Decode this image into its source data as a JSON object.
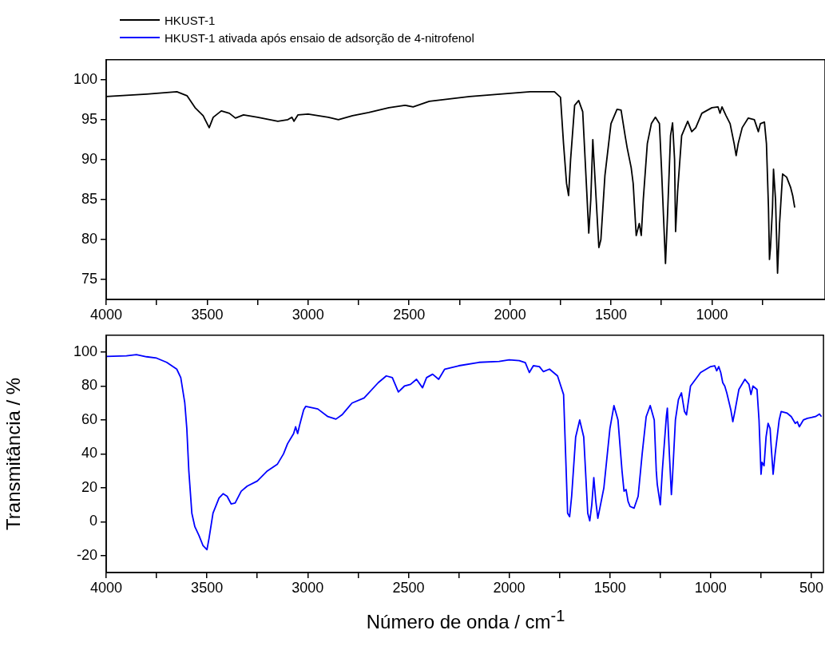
{
  "chart_data": [
    {
      "type": "line",
      "legend": "top",
      "xlim": [
        4000,
        440
      ],
      "ylim": [
        72.5,
        102.5
      ],
      "xticks": [
        4000,
        {
          "value": 3750,
          "label": null
        },
        3500,
        {
          "value": 3250,
          "label": null
        },
        3000,
        {
          "value": 2750,
          "label": null
        },
        2500,
        {
          "value": 2250,
          "label": null
        },
        2000,
        {
          "value": 1750,
          "label": null
        },
        1500,
        {
          "value": 1250,
          "label": null
        },
        1000,
        {
          "value": 750,
          "label": null
        }
      ],
      "yticks": [
        75,
        80,
        85,
        90,
        95,
        100
      ],
      "series": [
        {
          "name": "HKUST-1",
          "color": "#000000",
          "x": [
            4000,
            3800,
            3650,
            3600,
            3560,
            3520,
            3490,
            3470,
            3430,
            3390,
            3360,
            3320,
            3250,
            3150,
            3100,
            3080,
            3070,
            3050,
            3000,
            2900,
            2850,
            2780,
            2700,
            2600,
            2520,
            2480,
            2400,
            2300,
            2200,
            2100,
            2000,
            1900,
            1780,
            1750,
            1735,
            1720,
            1710,
            1700,
            1680,
            1660,
            1640,
            1620,
            1610,
            1600,
            1590,
            1580,
            1560,
            1550,
            1530,
            1500,
            1470,
            1450,
            1430,
            1420,
            1400,
            1390,
            1375,
            1360,
            1350,
            1340,
            1320,
            1300,
            1280,
            1260,
            1250,
            1240,
            1230,
            1220,
            1205,
            1195,
            1185,
            1180,
            1170,
            1150,
            1120,
            1100,
            1080,
            1050,
            1000,
            970,
            960,
            950,
            930,
            910,
            890,
            880,
            870,
            850,
            820,
            790,
            770,
            760,
            740,
            730,
            720,
            715,
            710,
            700,
            695,
            685,
            675,
            665,
            650,
            630,
            610,
            600,
            590
          ],
          "values": [
            97.9,
            98.2,
            98.5,
            98.0,
            96.5,
            95.5,
            94.0,
            95.3,
            96.1,
            95.8,
            95.2,
            95.6,
            95.3,
            94.8,
            95.0,
            95.3,
            94.8,
            95.6,
            95.7,
            95.3,
            95.0,
            95.5,
            95.9,
            96.5,
            96.8,
            96.6,
            97.3,
            97.6,
            97.9,
            98.1,
            98.3,
            98.5,
            98.5,
            97.8,
            92,
            87,
            85.5,
            90,
            96.8,
            97.4,
            96,
            86,
            80.8,
            85,
            92.5,
            88,
            79,
            80,
            88,
            94.5,
            96.3,
            96.2,
            93,
            91.5,
            89,
            87,
            80.5,
            82,
            80.5,
            85,
            92,
            94.5,
            95.3,
            94.5,
            89,
            83,
            77,
            83,
            93,
            94.6,
            90,
            81,
            86,
            93,
            94.8,
            93.5,
            94,
            95.8,
            96.5,
            96.6,
            95.8,
            96.6,
            95.5,
            94.5,
            92,
            90.5,
            92,
            94,
            95.2,
            95,
            93.5,
            94.5,
            94.7,
            92,
            84,
            77.5,
            79,
            84,
            88.8,
            85,
            75.8,
            82,
            88.2,
            87.8,
            86.5,
            85.5,
            84
          ]
        }
      ]
    },
    {
      "type": "line",
      "legend": "top",
      "xlabel": "Número de onda / cm$^{-1}$",
      "ylabel": "Transmitância / %",
      "xlim": [
        4000,
        440
      ],
      "ylim": [
        -30,
        110
      ],
      "xticks": [
        4000,
        {
          "value": 3750,
          "label": null
        },
        3500,
        {
          "value": 3250,
          "label": null
        },
        3000,
        {
          "value": 2750,
          "label": null
        },
        2500,
        {
          "value": 2250,
          "label": null
        },
        2000,
        {
          "value": 1750,
          "label": null
        },
        1500,
        {
          "value": 1250,
          "label": null
        },
        1000,
        {
          "value": 750,
          "label": null
        },
        500
      ],
      "yticks": [
        -20,
        0,
        20,
        40,
        60,
        80,
        100
      ],
      "series": [
        {
          "name": "HKUST-1 ativada após ensaio de adsorção de 4-nitrofenol",
          "color": "#0000ff",
          "x": [
            4000,
            3900,
            3850,
            3800,
            3750,
            3700,
            3650,
            3630,
            3610,
            3600,
            3590,
            3575,
            3560,
            3540,
            3520,
            3500,
            3490,
            3470,
            3440,
            3420,
            3400,
            3380,
            3360,
            3330,
            3300,
            3250,
            3200,
            3150,
            3120,
            3100,
            3080,
            3070,
            3060,
            3050,
            3040,
            3020,
            3010,
            2950,
            2900,
            2860,
            2830,
            2780,
            2720,
            2650,
            2610,
            2580,
            2550,
            2520,
            2490,
            2460,
            2430,
            2410,
            2380,
            2350,
            2320,
            2250,
            2150,
            2050,
            2000,
            1950,
            1920,
            1900,
            1880,
            1850,
            1830,
            1800,
            1760,
            1730,
            1720,
            1710,
            1700,
            1690,
            1670,
            1650,
            1630,
            1610,
            1600,
            1590,
            1580,
            1570,
            1560,
            1530,
            1500,
            1480,
            1460,
            1440,
            1430,
            1420,
            1410,
            1400,
            1380,
            1360,
            1340,
            1320,
            1300,
            1280,
            1270,
            1265,
            1250,
            1240,
            1220,
            1215,
            1205,
            1195,
            1190,
            1175,
            1160,
            1145,
            1130,
            1120,
            1100,
            1050,
            1000,
            980,
            970,
            960,
            950,
            940,
            930,
            920,
            900,
            890,
            880,
            860,
            830,
            810,
            800,
            790,
            770,
            760,
            750,
            745,
            735,
            725,
            715,
            705,
            700,
            690,
            680,
            660,
            650,
            620,
            600,
            580,
            570,
            560,
            540,
            520,
            480,
            460,
            450
          ],
          "values": [
            97.5,
            97.8,
            98.5,
            97.3,
            96.5,
            94,
            90,
            85,
            70,
            55,
            30,
            5,
            -3,
            -8,
            -14,
            -16.5,
            -10,
            5,
            14,
            16.5,
            15,
            10.5,
            11,
            18,
            21,
            24,
            30,
            34,
            40,
            46,
            50,
            52,
            56,
            52,
            57,
            66,
            68,
            66.5,
            62,
            60.5,
            63,
            70,
            73,
            82,
            86,
            85,
            76.5,
            80,
            81,
            84,
            79,
            85,
            87,
            84,
            90,
            92,
            94,
            94.5,
            95.5,
            95,
            93.8,
            88,
            92,
            91.5,
            88.5,
            90,
            86,
            75,
            40,
            5,
            3,
            15,
            50,
            60,
            50,
            5,
            0.5,
            10,
            26,
            12,
            2,
            20,
            55,
            68.5,
            60,
            30,
            18,
            19,
            12,
            9,
            8,
            15,
            40,
            62,
            68.5,
            60,
            30,
            22,
            10,
            30,
            62,
            67,
            40,
            16,
            25,
            60,
            72,
            76,
            65,
            63,
            80,
            88,
            91.5,
            92,
            89,
            91.5,
            88,
            82,
            80,
            76,
            66,
            59,
            65,
            78,
            84,
            81,
            75,
            80,
            78,
            60,
            28,
            35,
            33,
            50,
            58,
            55,
            45,
            28,
            40,
            60,
            65,
            64,
            62,
            58,
            59,
            56,
            60,
            61,
            62,
            63.5,
            62
          ]
        }
      ]
    }
  ]
}
